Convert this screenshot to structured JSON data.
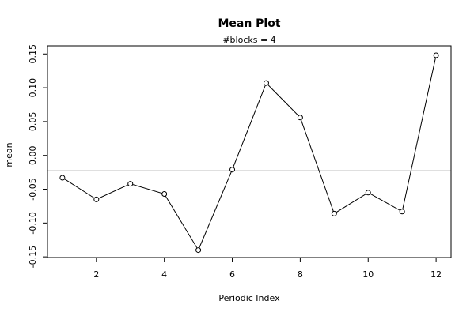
{
  "chart_data": {
    "type": "line",
    "title": "Mean Plot",
    "subtitle": "#blocks =  4",
    "xlabel": "Periodic Index",
    "ylabel": "mean",
    "x": [
      1,
      2,
      3,
      4,
      5,
      6,
      7,
      8,
      9,
      10,
      11,
      12
    ],
    "series": [
      {
        "values": [
          -0.033,
          -0.065,
          -0.042,
          -0.057,
          -0.14,
          -0.021,
          0.107,
          0.056,
          -0.086,
          -0.055,
          -0.083,
          0.148
        ],
        "color": "#000000"
      }
    ],
    "mean_line": -0.023,
    "xlim": [
      0.56,
      12.44
    ],
    "xticks": [
      2,
      4,
      6,
      8,
      10,
      12
    ],
    "ylim": [
      -0.151,
      0.162
    ],
    "yticks": [
      -0.15,
      {
        "value": -0.1,
        "label": "-0.10"
      },
      -0.05,
      {
        "value": 0,
        "label": "0.00"
      },
      0.05,
      {
        "value": 0.1,
        "label": "0.10"
      },
      0.15
    ]
  }
}
